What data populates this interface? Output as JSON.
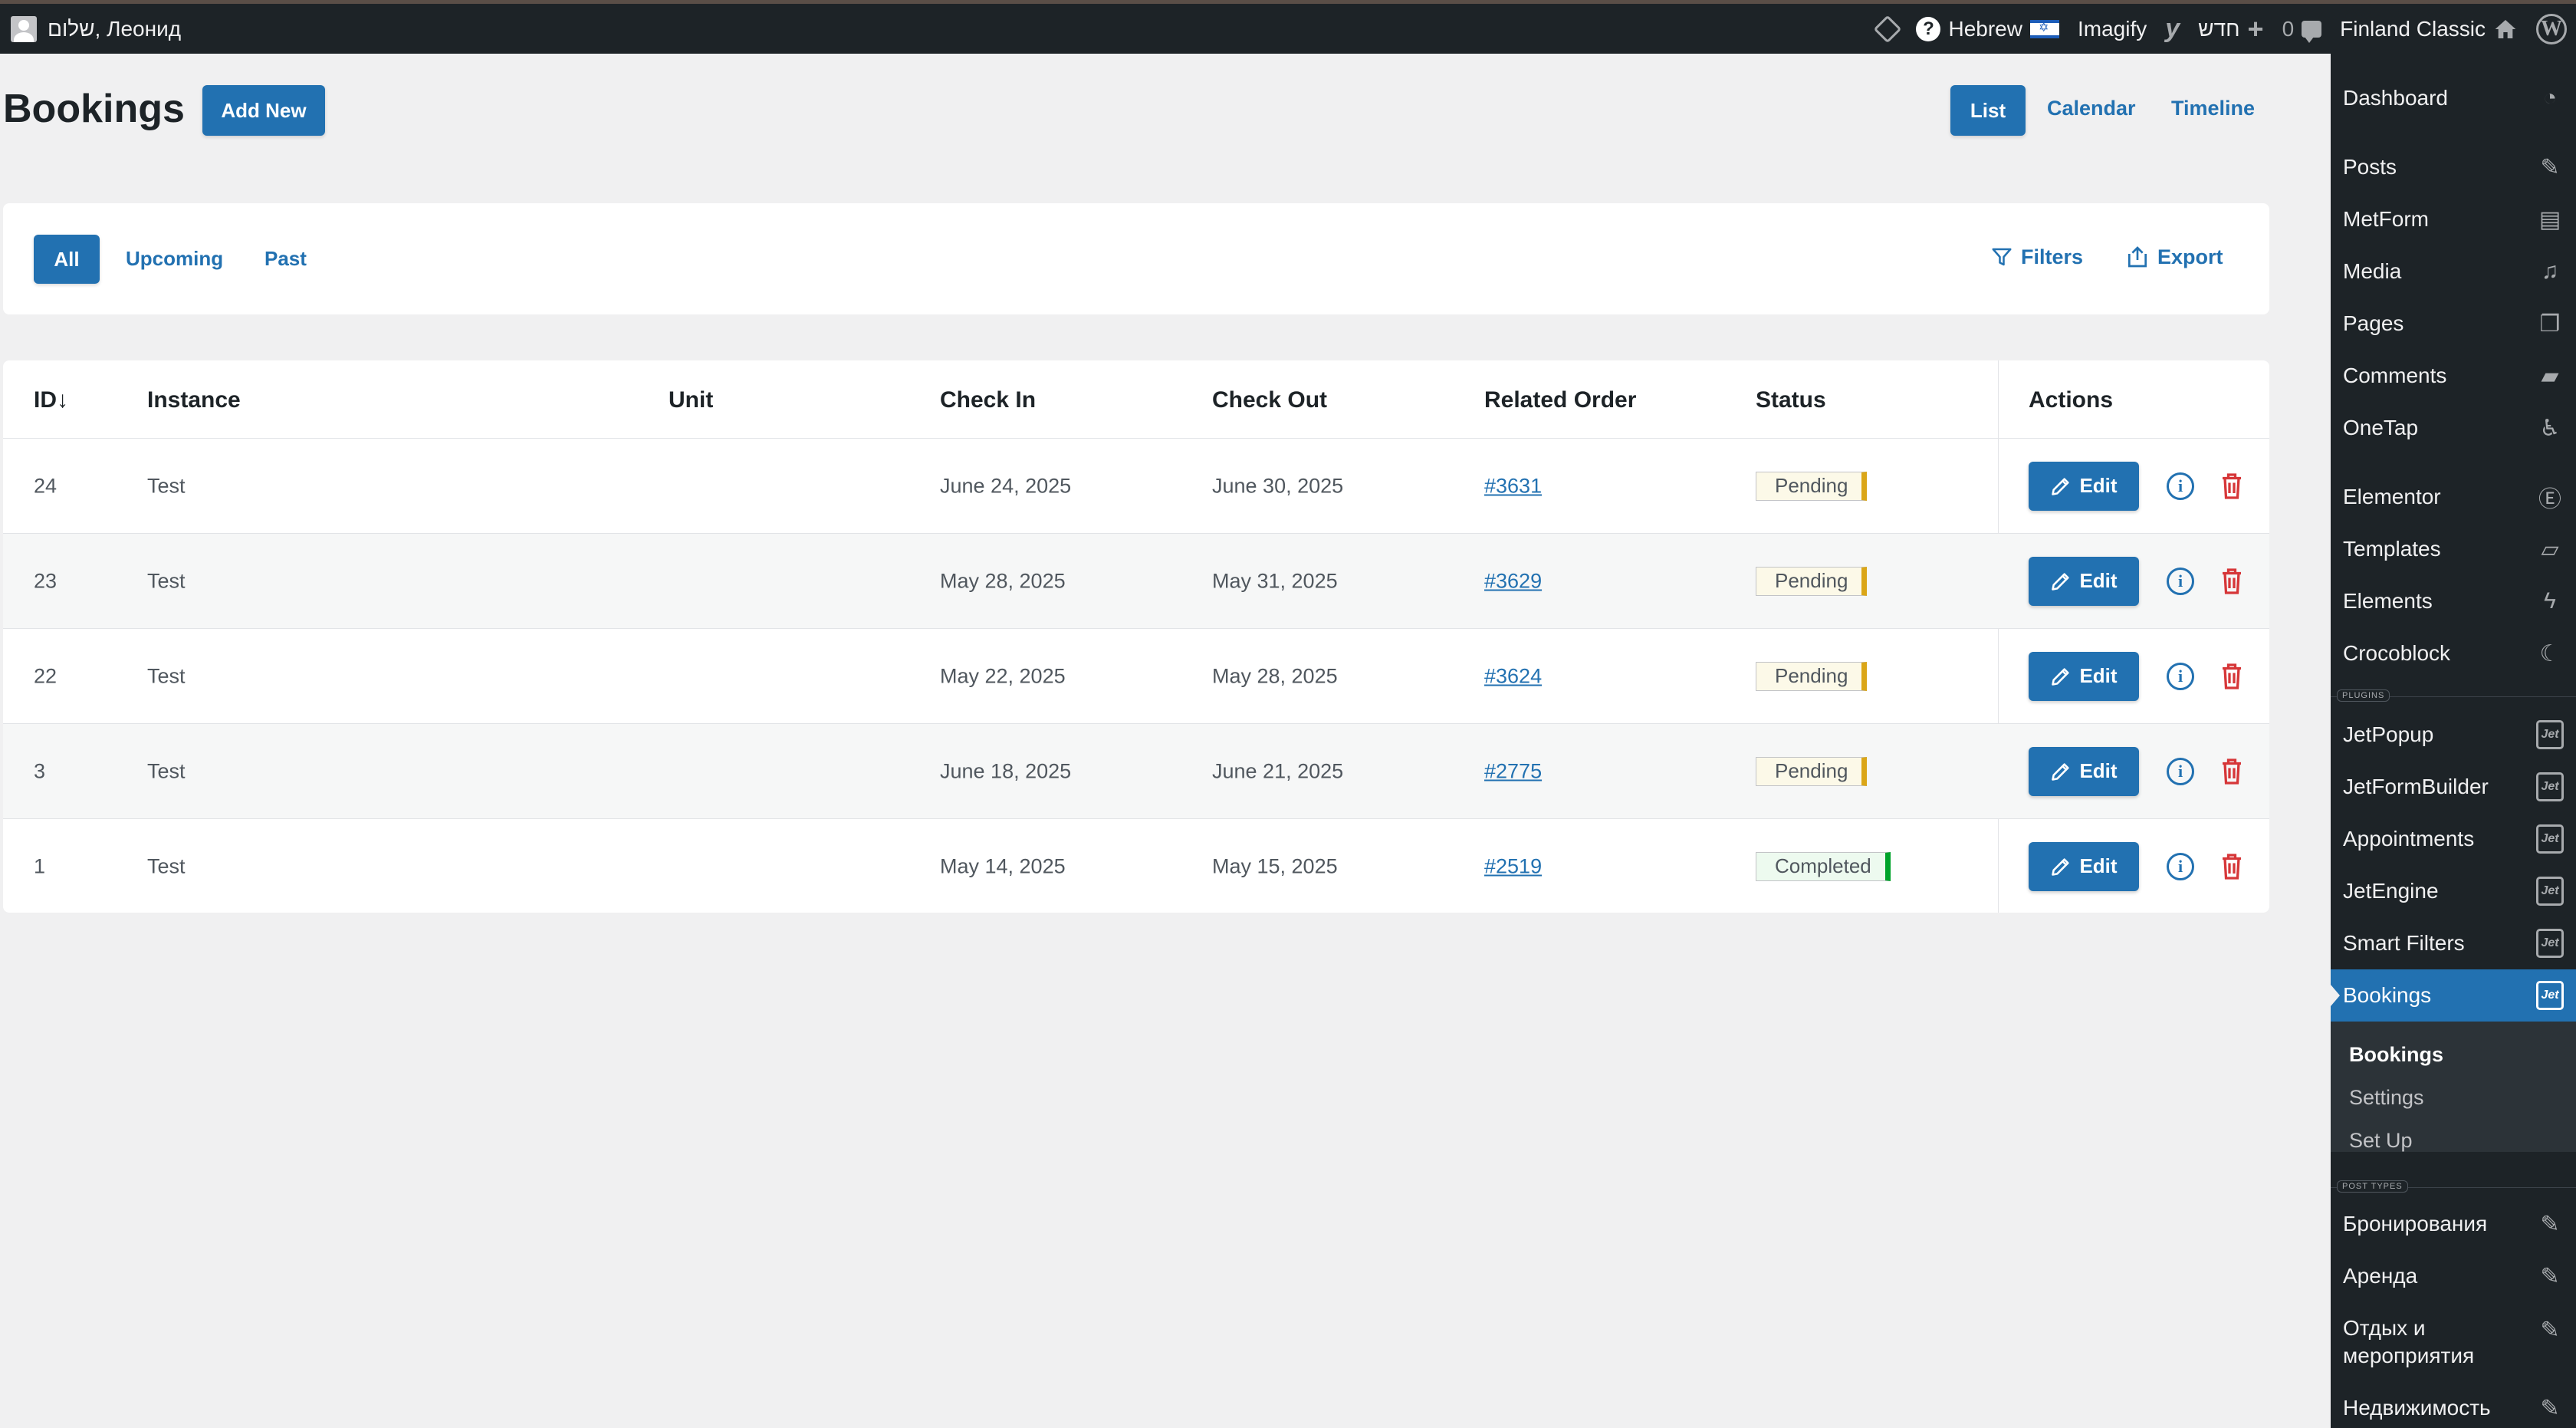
{
  "admin_bar": {
    "greeting": "שלום, Леонид",
    "language": "Hebrew",
    "imagify": "Imagify",
    "new_label": "חדש",
    "comments_count": "0",
    "site_name": "Finland Classic"
  },
  "page": {
    "title": "Bookings",
    "add_new": "Add New",
    "views": [
      "List",
      "Calendar",
      "Timeline"
    ]
  },
  "filters_bar": {
    "tabs": [
      "All",
      "Upcoming",
      "Past"
    ],
    "filters_label": "Filters",
    "export_label": "Export"
  },
  "table": {
    "columns": [
      "ID↓",
      "Instance",
      "Unit",
      "Check In",
      "Check Out",
      "Related Order",
      "Status",
      "Actions"
    ],
    "edit_label": "Edit",
    "rows": [
      {
        "id": "24",
        "instance": "Test",
        "unit": "",
        "check_in": "June 24, 2025",
        "check_out": "June 30, 2025",
        "order": "#3631",
        "status": "Pending"
      },
      {
        "id": "23",
        "instance": "Test",
        "unit": "",
        "check_in": "May 28, 2025",
        "check_out": "May 31, 2025",
        "order": "#3629",
        "status": "Pending"
      },
      {
        "id": "22",
        "instance": "Test",
        "unit": "",
        "check_in": "May 22, 2025",
        "check_out": "May 28, 2025",
        "order": "#3624",
        "status": "Pending"
      },
      {
        "id": "3",
        "instance": "Test",
        "unit": "",
        "check_in": "June 18, 2025",
        "check_out": "June 21, 2025",
        "order": "#2775",
        "status": "Pending"
      },
      {
        "id": "1",
        "instance": "Test",
        "unit": "",
        "check_in": "May 14, 2025",
        "check_out": "May 15, 2025",
        "order": "#2519",
        "status": "Completed"
      }
    ]
  },
  "sidebar": {
    "items": [
      {
        "label": "Dashboard",
        "icon": "dashboard-icon"
      },
      {
        "label": "Posts",
        "icon": "pin-icon"
      },
      {
        "label": "MetForm",
        "icon": "form-icon"
      },
      {
        "label": "Media",
        "icon": "media-icon"
      },
      {
        "label": "Pages",
        "icon": "pages-icon"
      },
      {
        "label": "Comments",
        "icon": "comment-icon"
      },
      {
        "label": "OneTap",
        "icon": "accessibility-icon"
      },
      {
        "label": "Elementor",
        "icon": "elementor-icon"
      },
      {
        "label": "Templates",
        "icon": "folder-icon"
      },
      {
        "label": "Elements",
        "icon": "bolt-icon"
      },
      {
        "label": "Crocoblock",
        "icon": "crocoblock-icon"
      },
      {
        "label": "JetPopup",
        "icon": "jet-icon"
      },
      {
        "label": "JetFormBuilder",
        "icon": "jet-icon"
      },
      {
        "label": "Appointments",
        "icon": "jet-icon"
      },
      {
        "label": "JetEngine",
        "icon": "jet-icon"
      },
      {
        "label": "Smart Filters",
        "icon": "jet-icon"
      },
      {
        "label": "Bookings",
        "icon": "jet-icon"
      },
      {
        "label": "Бронирования",
        "icon": "pin-icon"
      },
      {
        "label": "Аренда",
        "icon": "pin-icon"
      },
      {
        "label": "Отдых и мероприятия",
        "icon": "pin-icon"
      },
      {
        "label": "Недвижимость",
        "icon": "pin-icon"
      }
    ],
    "plugins_label": "PLUGINS",
    "post_types_label": "POST TYPES",
    "submenu": [
      "Bookings",
      "Settings",
      "Set Up"
    ],
    "jet_icon_text": "Jet"
  },
  "colors": {
    "accent": "#2271b1",
    "admin_dark": "#1d2327",
    "pending": "#dba617",
    "completed": "#00a32a",
    "delete": "#d63638"
  }
}
